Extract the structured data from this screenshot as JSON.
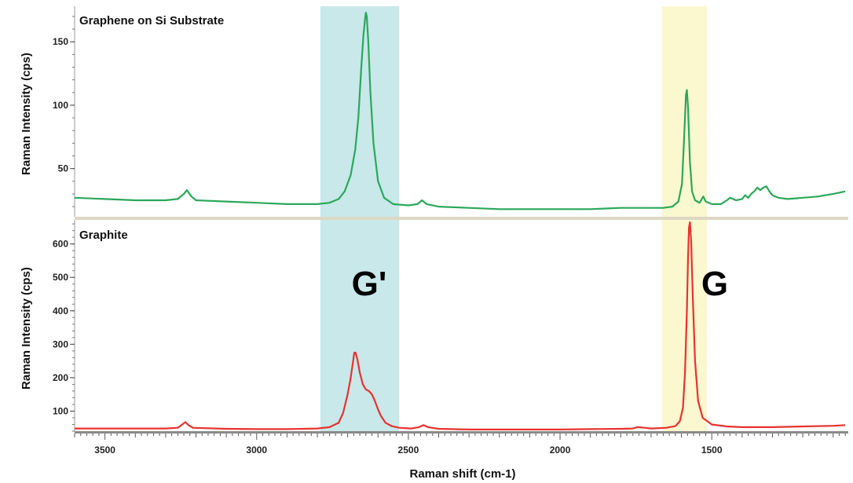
{
  "chart_data": [
    {
      "type": "line",
      "title": "Graphene on Si Substrate",
      "ylabel": "Raman Intensity (cps)",
      "xlabel": "",
      "xlim": [
        3600,
        1050
      ],
      "ylim": [
        12,
        178
      ],
      "yticks": [
        50,
        100,
        150
      ],
      "series": [
        {
          "color": "#2aa85a",
          "x": [
            3600,
            3500,
            3400,
            3300,
            3260,
            3240,
            3230,
            3215,
            3200,
            3100,
            3000,
            2900,
            2800,
            2760,
            2730,
            2710,
            2690,
            2675,
            2665,
            2655,
            2648,
            2642,
            2640,
            2637,
            2632,
            2625,
            2615,
            2600,
            2580,
            2550,
            2500,
            2470,
            2455,
            2440,
            2400,
            2300,
            2200,
            2100,
            2000,
            1900,
            1800,
            1700,
            1660,
            1630,
            1610,
            1598,
            1590,
            1585,
            1582,
            1578,
            1572,
            1565,
            1555,
            1540,
            1528,
            1520,
            1500,
            1470,
            1450,
            1440,
            1420,
            1400,
            1390,
            1380,
            1370,
            1360,
            1350,
            1340,
            1330,
            1320,
            1310,
            1300,
            1280,
            1250,
            1200,
            1150,
            1100,
            1060
          ],
          "y": [
            27,
            26,
            25,
            25,
            26,
            30,
            33,
            28,
            25,
            24,
            23,
            22,
            22,
            23,
            26,
            32,
            45,
            65,
            90,
            130,
            155,
            170,
            173,
            170,
            150,
            110,
            70,
            40,
            27,
            22,
            21,
            22,
            25,
            22,
            20,
            19,
            18,
            18,
            18,
            18,
            19,
            19,
            19,
            20,
            24,
            38,
            80,
            108,
            112,
            98,
            55,
            32,
            25,
            23,
            28,
            24,
            22,
            22,
            25,
            27,
            25,
            26,
            29,
            27,
            30,
            32,
            35,
            33,
            35,
            36,
            32,
            29,
            27,
            26,
            27,
            28,
            30,
            32
          ]
        }
      ],
      "bands": [
        {
          "from": 2790,
          "to": 2530,
          "color": "#c8e8ea"
        },
        {
          "from": 1665,
          "to": 1515,
          "color": "#fbf7cf"
        }
      ]
    },
    {
      "type": "line",
      "title": "Graphite",
      "ylabel": "Raman Intensity (cps)",
      "xlabel": "Raman shift (cm-1)",
      "xlim": [
        3600,
        1050
      ],
      "ylim": [
        40,
        672
      ],
      "xticks": [
        3500,
        3000,
        2500,
        2000,
        1500
      ],
      "yticks": [
        100,
        200,
        300,
        400,
        500,
        600
      ],
      "series": [
        {
          "color": "#e8322e",
          "x": [
            3600,
            3500,
            3400,
            3300,
            3260,
            3245,
            3235,
            3225,
            3210,
            3100,
            3000,
            2900,
            2800,
            2760,
            2730,
            2715,
            2700,
            2690,
            2682,
            2678,
            2674,
            2668,
            2660,
            2650,
            2640,
            2630,
            2620,
            2610,
            2600,
            2590,
            2575,
            2555,
            2530,
            2490,
            2465,
            2450,
            2435,
            2400,
            2300,
            2200,
            2100,
            2000,
            1900,
            1800,
            1760,
            1745,
            1720,
            1700,
            1650,
            1620,
            1605,
            1595,
            1588,
            1582,
            1578,
            1575,
            1572,
            1568,
            1562,
            1555,
            1545,
            1530,
            1500,
            1450,
            1400,
            1300,
            1200,
            1100,
            1060
          ],
          "y": [
            48,
            48,
            48,
            48,
            50,
            60,
            67,
            58,
            50,
            47,
            46,
            46,
            48,
            52,
            65,
            95,
            150,
            200,
            250,
            275,
            275,
            255,
            215,
            180,
            165,
            160,
            150,
            130,
            105,
            85,
            65,
            55,
            50,
            48,
            52,
            58,
            52,
            47,
            45,
            45,
            45,
            45,
            46,
            47,
            48,
            52,
            50,
            48,
            50,
            55,
            70,
            110,
            220,
            400,
            560,
            650,
            665,
            610,
            430,
            250,
            130,
            80,
            60,
            54,
            52,
            52,
            54,
            56,
            58
          ]
        }
      ],
      "bands": [
        {
          "from": 2790,
          "to": 2530,
          "color": "#c8e8ea"
        },
        {
          "from": 1665,
          "to": 1515,
          "color": "#fbf7cf"
        }
      ]
    }
  ],
  "band_labels": {
    "g_prime": "G'",
    "g": "G"
  }
}
